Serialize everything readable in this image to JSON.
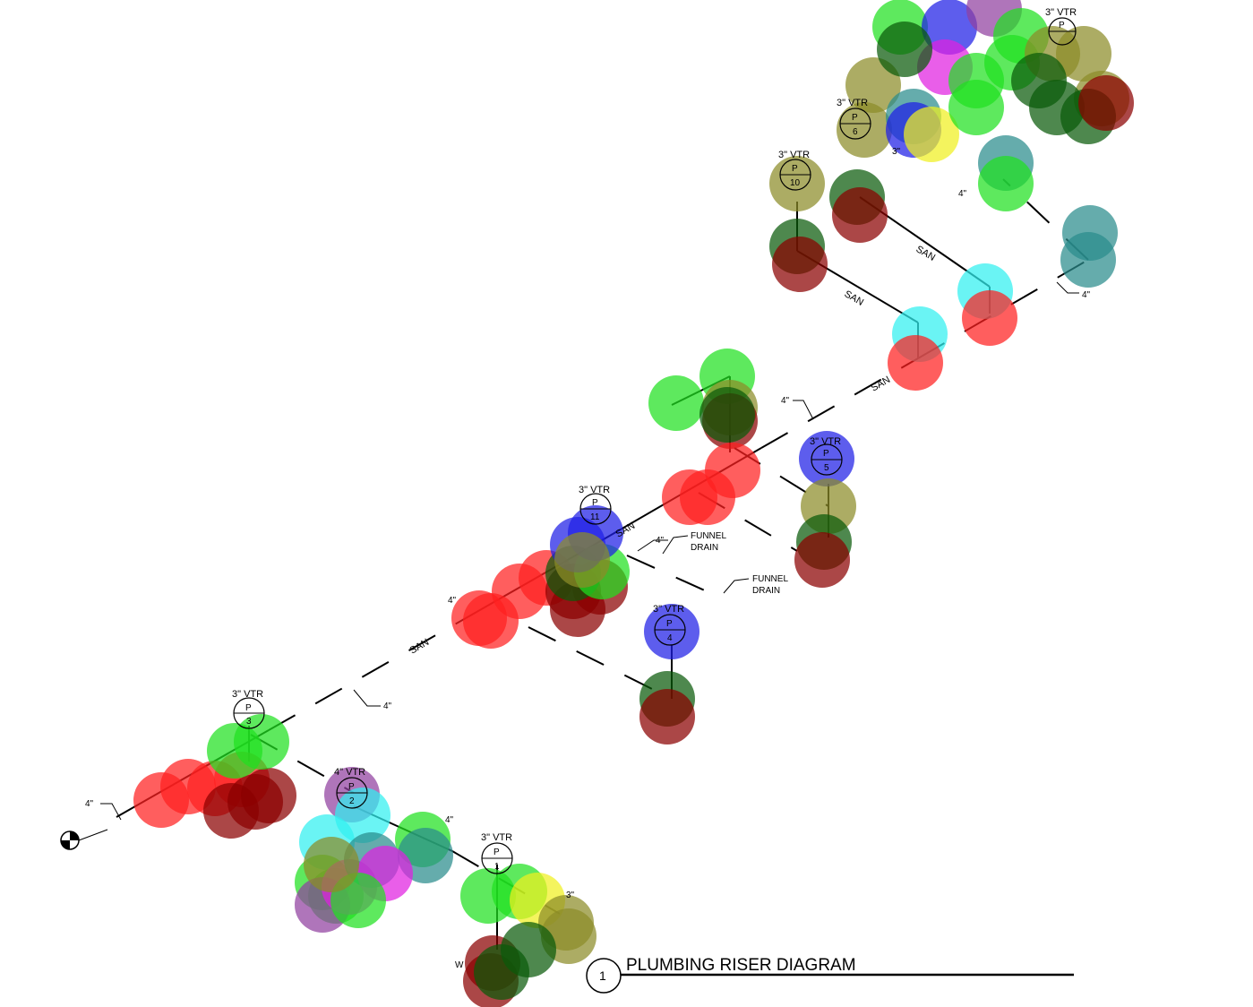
{
  "title": "PLUMBING RISER DIAGRAM",
  "view_number": "1",
  "pipe_labels": {
    "san": "SAN",
    "size_4": "4\"",
    "size_3": "3\"",
    "w": "W"
  },
  "vents": [
    {
      "size": "3\" VTR",
      "tag": "P",
      "num": "1"
    },
    {
      "size": "4\" VTR",
      "tag": "P",
      "num": "2"
    },
    {
      "size": "3\" VTR",
      "tag": "P",
      "num": "3"
    },
    {
      "size": "3\" VTR",
      "tag": "P",
      "num": "4"
    },
    {
      "size": "3\" VTR",
      "tag": "P",
      "num": "5"
    },
    {
      "size": "3\" VTR",
      "tag": "P",
      "num": "6"
    },
    {
      "size": "3\" VTR",
      "tag": "P",
      "num": "10"
    },
    {
      "size": "3\" VTR",
      "tag": "P",
      "num": "11"
    },
    {
      "size": "3\" VTR",
      "tag": "P",
      "num": ""
    }
  ],
  "notes": {
    "funnel_drain_1": [
      "FUNNEL",
      "DRAIN"
    ],
    "funnel_drain_2": [
      "FUNNEL",
      "DRAIN"
    ]
  },
  "colors": {
    "red": "#ff2020",
    "dark_red": "#8b0000",
    "green": "#20e020",
    "dark_green": "#0a5a0a",
    "olive": "#8c8c28",
    "blue": "#1e1ee6",
    "cyan": "#30f0f0",
    "teal": "#2a8c8c",
    "magenta": "#e020e0",
    "purple": "#9040a0",
    "yellow": "#f0f020"
  }
}
